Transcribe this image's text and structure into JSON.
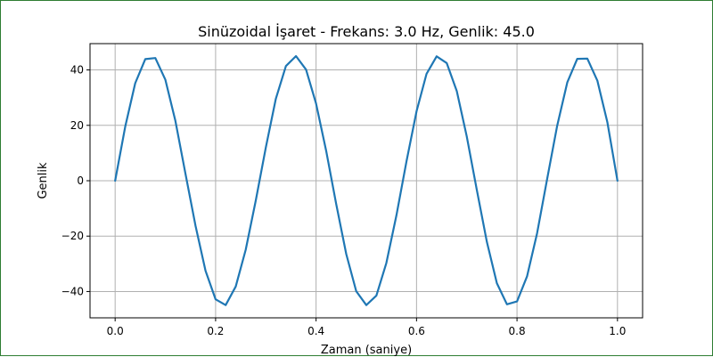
{
  "chart_data": {
    "type": "line",
    "title": "Sinüzoidal İşaret - Frekans: 3.0 Hz, Genlik: 45.0",
    "xlabel": "Zaman (saniye)",
    "ylabel": "Genlik",
    "xlim": [
      -0.05,
      1.05
    ],
    "ylim": [
      -49.5,
      49.5
    ],
    "grid": true,
    "line_color": "#1f77b4",
    "x_ticks": [
      {
        "value": 0.0,
        "label": "0.0"
      },
      {
        "value": 0.2,
        "label": "0.2"
      },
      {
        "value": 0.4,
        "label": "0.4"
      },
      {
        "value": 0.6,
        "label": "0.6"
      },
      {
        "value": 0.8,
        "label": "0.8"
      },
      {
        "value": 1.0,
        "label": "1.0"
      }
    ],
    "y_ticks": [
      {
        "value": -40,
        "label": "−40"
      },
      {
        "value": -20,
        "label": "−20"
      },
      {
        "value": 0,
        "label": "0"
      },
      {
        "value": 20,
        "label": "20"
      },
      {
        "value": 40,
        "label": "40"
      }
    ],
    "series": [
      {
        "x": [
          0,
          0.02,
          0.04,
          0.06,
          0.08,
          0.1,
          0.12,
          0.14,
          0.16,
          0.18,
          0.2,
          0.22,
          0.24,
          0.26,
          0.28,
          0.3,
          0.32,
          0.34,
          0.36,
          0.38,
          0.4,
          0.42,
          0.44,
          0.46,
          0.48,
          0.5,
          0.52,
          0.54,
          0.56,
          0.58,
          0.6,
          0.62,
          0.64,
          0.66,
          0.68,
          0.7,
          0.72,
          0.74,
          0.76,
          0.78,
          0.8,
          0.82,
          0.84,
          0.86,
          0.88,
          0.9,
          0.92,
          0.94,
          0.96,
          0.98,
          1.0
        ],
        "y": [
          0,
          19.5,
          35.2,
          43.9,
          44.3,
          36.5,
          21.6,
          2.5,
          -16.3,
          -32.5,
          -42.8,
          -44.9,
          -38.2,
          -24.9,
          -7.1,
          12.1,
          29.6,
          41.4,
          45.0,
          40.1,
          27.9,
          10.9,
          -8.4,
          -26.5,
          -39.9,
          -44.9,
          -41.5,
          -29.7,
          -12.5,
          7.0,
          25.1,
          38.6,
          44.9,
          42.5,
          32.4,
          16.0,
          -3.3,
          -22.1,
          -37.0,
          -44.6,
          -43.6,
          -34.5,
          -19.0,
          0.6,
          19.9,
          35.5,
          44.0,
          44.1,
          36.1,
          21.1,
          0
        ]
      }
    ]
  }
}
